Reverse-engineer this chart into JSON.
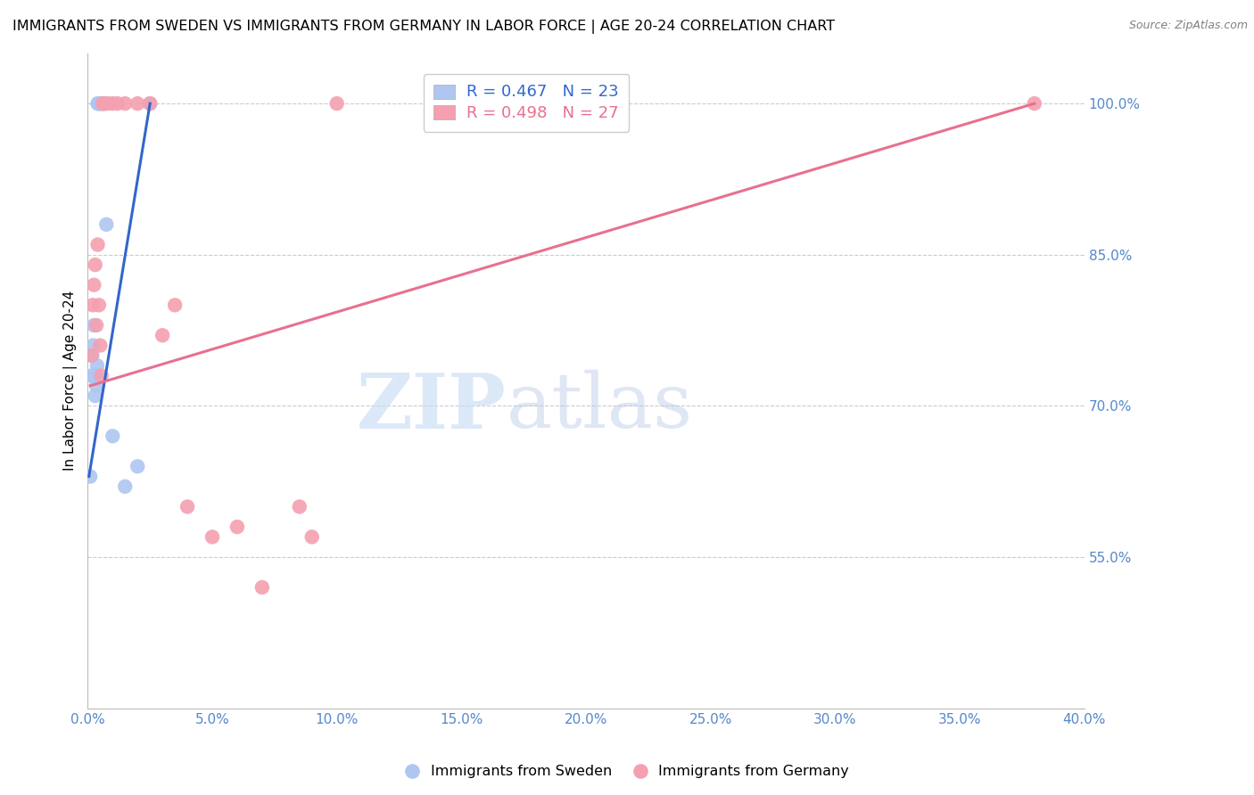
{
  "title": "IMMIGRANTS FROM SWEDEN VS IMMIGRANTS FROM GERMANY IN LABOR FORCE | AGE 20-24 CORRELATION CHART",
  "source": "Source: ZipAtlas.com",
  "xlabel": "",
  "ylabel": "In Labor Force | Age 20-24",
  "sweden_x": [
    0.1,
    0.15,
    0.18,
    0.22,
    0.25,
    0.28,
    0.3,
    0.32,
    0.35,
    0.38,
    0.4,
    0.42,
    0.45,
    0.5,
    0.55,
    0.6,
    0.65,
    0.7,
    0.75,
    1.0,
    1.5,
    2.0,
    2.5
  ],
  "sweden_y": [
    63,
    73,
    75,
    76,
    78,
    73,
    71,
    73,
    72,
    74,
    100,
    100,
    100,
    100,
    100,
    100,
    100,
    100,
    88,
    67,
    62,
    64,
    100
  ],
  "germany_x": [
    0.15,
    0.2,
    0.25,
    0.3,
    0.35,
    0.4,
    0.45,
    0.5,
    0.55,
    0.6,
    0.65,
    0.8,
    1.0,
    1.2,
    1.5,
    2.0,
    2.5,
    3.0,
    3.5,
    4.0,
    5.0,
    6.0,
    7.0,
    8.5,
    9.0,
    10.0,
    38.0
  ],
  "germany_y": [
    75,
    80,
    82,
    84,
    78,
    86,
    80,
    76,
    73,
    100,
    100,
    100,
    100,
    100,
    100,
    100,
    100,
    77,
    80,
    60,
    57,
    58,
    52,
    60,
    57,
    100,
    100
  ],
  "sweden_line_x": [
    0.05,
    2.5
  ],
  "sweden_line_y": [
    63,
    100
  ],
  "germany_line_x": [
    0.1,
    38.0
  ],
  "germany_line_y": [
    72,
    100
  ],
  "sweden_color": "#aec6f0",
  "germany_color": "#f4a0b0",
  "sweden_line_color": "#3366cc",
  "germany_line_color": "#e87090",
  "sweden_R": 0.467,
  "sweden_N": 23,
  "germany_R": 0.498,
  "germany_N": 27,
  "xlim": [
    0,
    40
  ],
  "ylim": [
    40,
    105
  ],
  "yticks": [
    55,
    70,
    85,
    100
  ],
  "xticks": [
    0,
    5,
    10,
    15,
    20,
    25,
    30,
    35,
    40
  ],
  "grid_color": "#cccccc",
  "tick_color": "#5588cc",
  "background_color": "#ffffff",
  "watermark_zip": "ZIP",
  "watermark_atlas": "atlas",
  "title_fontsize": 11.5,
  "label_fontsize": 11,
  "tick_fontsize": 11
}
